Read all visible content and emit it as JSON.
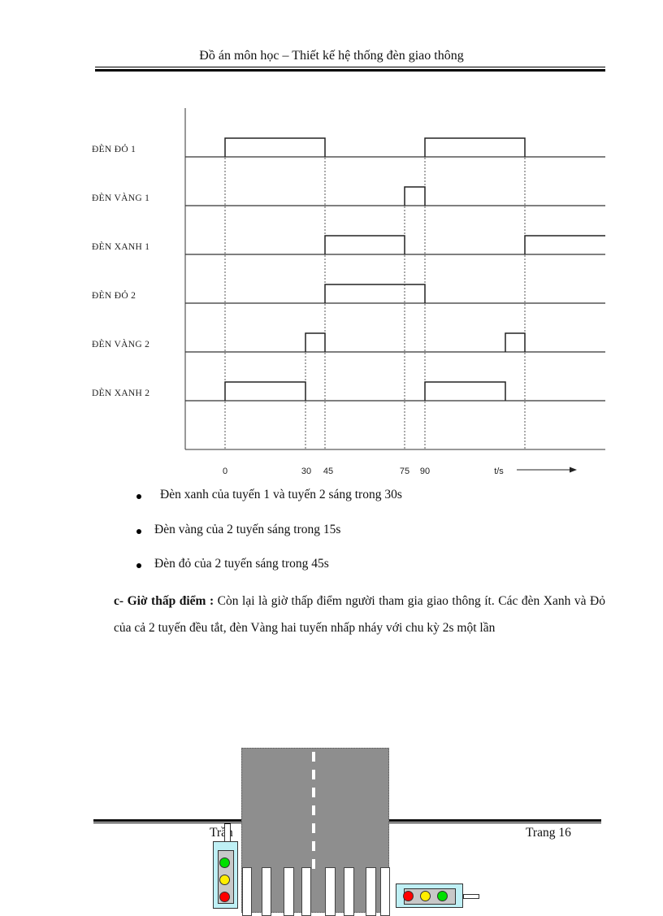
{
  "header": {
    "title": "Đồ án môn học – Thiết kế hệ thống đèn giao thông"
  },
  "chart_data": {
    "type": "line",
    "subtype": "timing-diagram",
    "xlabel": "t/s",
    "x_ticks": [
      "0",
      "30",
      "45",
      "75",
      "90"
    ],
    "x_range": [
      0,
      150
    ],
    "series": [
      {
        "name": "ĐÈN ĐỎ 1",
        "on_intervals": [
          [
            0,
            45
          ],
          [
            90,
            135
          ]
        ]
      },
      {
        "name": "ĐÈN VÀNG 1",
        "on_intervals": [
          [
            75,
            90
          ]
        ]
      },
      {
        "name": "ĐÈN XANH 1",
        "on_intervals": [
          [
            45,
            75
          ],
          [
            135,
            150
          ]
        ]
      },
      {
        "name": "ĐÈN ĐỎ 2",
        "on_intervals": [
          [
            45,
            90
          ]
        ]
      },
      {
        "name": "ĐÈN VÀNG 2",
        "on_intervals": [
          [
            30,
            45
          ],
          [
            120,
            135
          ]
        ]
      },
      {
        "name": "DÈN XANH 2",
        "on_intervals": [
          [
            0,
            30
          ],
          [
            90,
            120
          ]
        ]
      }
    ],
    "guide_lines_at": [
      0,
      30,
      45,
      75,
      90,
      135
    ],
    "grid": false
  },
  "bullets": [
    "Đèn xanh của tuyến 1 và tuyến 2 sáng trong 30s",
    "Đèn vàng của 2 tuyến sáng trong 15s",
    "Đèn đỏ của 2 tuyến sáng trong 45s"
  ],
  "section_c": {
    "heading": "c- Giờ thấp điểm :",
    "body": " Còn lại là giờ thấp điểm người tham gia giao thông ít. Các đèn Xanh và Đỏ của cả 2 tuyến đều tắt, đèn Vàng hai tuyến nhấp nháy  với chu kỳ 2s một lần"
  },
  "footer": {
    "author": "Trần",
    "page": "Trang 16"
  },
  "illustration": {
    "left_signal_lights": [
      "#00e000",
      "#ffee00",
      "#ff0000"
    ],
    "right_signal_lights": [
      "#ff0000",
      "#ffee00",
      "#00e000"
    ]
  }
}
